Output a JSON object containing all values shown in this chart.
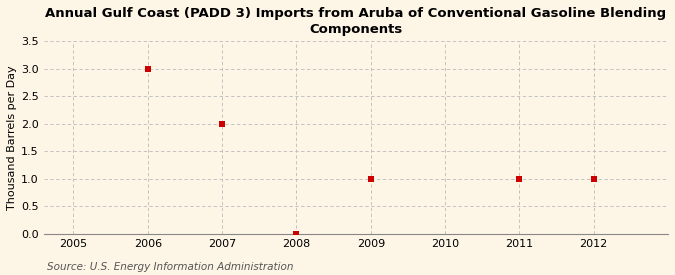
{
  "title": "Annual Gulf Coast (PADD 3) Imports from Aruba of Conventional Gasoline Blending\nComponents",
  "ylabel": "Thousand Barrels per Day",
  "source": "Source: U.S. Energy Information Administration",
  "background_color": "#fdf5e6",
  "plot_background_color": "#fdf5e6",
  "x_data": [
    2006,
    2007,
    2008,
    2009,
    2011,
    2012
  ],
  "y_data": [
    3.0,
    2.0,
    0.0,
    1.0,
    1.0,
    1.0
  ],
  "marker_color": "#cc0000",
  "marker_size": 4,
  "xlim": [
    2004.6,
    2013.0
  ],
  "ylim": [
    0.0,
    3.5
  ],
  "yticks": [
    0.0,
    0.5,
    1.0,
    1.5,
    2.0,
    2.5,
    3.0,
    3.5
  ],
  "xticks": [
    2005,
    2006,
    2007,
    2008,
    2009,
    2010,
    2011,
    2012
  ],
  "grid_color": "#bbbbbb",
  "title_fontsize": 9.5,
  "axis_fontsize": 8,
  "tick_fontsize": 8,
  "source_fontsize": 7.5
}
